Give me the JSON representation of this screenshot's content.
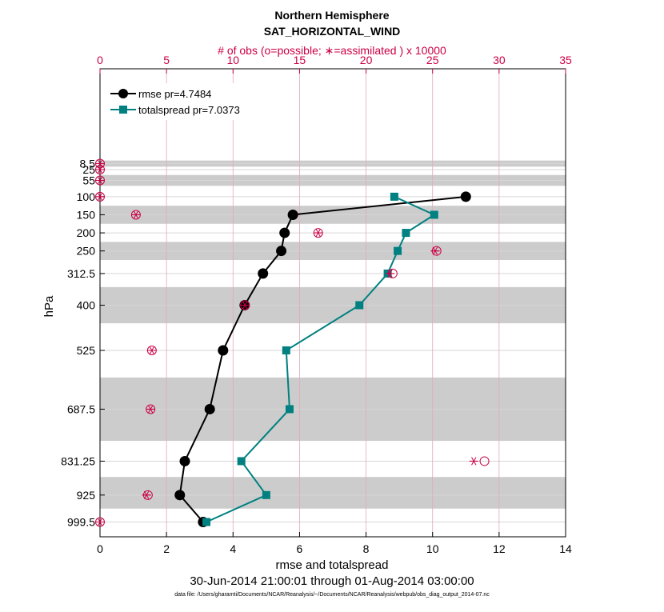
{
  "chart_data": {
    "type": "line",
    "title": "Northern Hemisphere",
    "subtitle": "SAT_HORIZONTAL_WIND",
    "top_axis_label": "# of obs (o=possible; ∗=assimilated ) x 10000",
    "xlabel": "rmse and totalspread",
    "ylabel": "hPa",
    "date_range": "30-Jun-2014 21:00:01 through 01-Aug-2014 03:00:00",
    "data_file": "data file: /Users/gharamti/Documents/NCAR/Reanalysis/~/Documents/NCAR/Reanalysis/webpub/obs_diag_output_2014-07.nc",
    "xlim": [
      0,
      14
    ],
    "xticks": [
      "0",
      "2",
      "4",
      "6",
      "8",
      "10",
      "12",
      "14"
    ],
    "top_xlim": [
      0,
      35
    ],
    "top_xticks": [
      "0",
      "5",
      "10",
      "15",
      "20",
      "25",
      "30",
      "35"
    ],
    "levels": [
      "8.5",
      "25",
      "55",
      "100",
      "150",
      "200",
      "250",
      "312.5",
      "400",
      "525",
      "687.5",
      "831.25",
      "925",
      "999.5"
    ],
    "level_values": [
      8.5,
      25,
      55,
      100,
      150,
      200,
      250,
      312.5,
      400,
      525,
      687.5,
      831.25,
      925,
      999.5
    ],
    "shaded_bands_hPa": [
      [
        0,
        17
      ],
      [
        40,
        70
      ],
      [
        125,
        175
      ],
      [
        225,
        275
      ],
      [
        350,
        450
      ],
      [
        600,
        775
      ],
      [
        875,
        962.5
      ]
    ],
    "series": [
      {
        "name": "rmse",
        "legend": "rmse pr=4.7484",
        "color": "#000000",
        "marker": "circle",
        "levels": [
          100,
          150,
          200,
          250,
          312.5,
          400,
          525,
          687.5,
          831.25,
          925,
          999.5
        ],
        "values": [
          11.0,
          5.8,
          5.55,
          5.45,
          4.9,
          4.35,
          3.7,
          3.3,
          2.55,
          2.4,
          3.1
        ]
      },
      {
        "name": "totalspread",
        "legend": "totalspread pr=7.0373",
        "color": "#008080",
        "marker": "square",
        "levels": [
          100,
          150,
          200,
          250,
          312.5,
          400,
          525,
          687.5,
          831.25,
          925,
          999.5
        ],
        "values": [
          8.85,
          10.05,
          9.2,
          8.95,
          8.65,
          7.8,
          5.6,
          5.7,
          4.25,
          5.0,
          3.2
        ]
      }
    ],
    "obs_color": "#cc0044",
    "obs_possible": [
      {
        "level": 8.5,
        "count": 0.0
      },
      {
        "level": 25,
        "count": 0.0
      },
      {
        "level": 55,
        "count": 0.0
      },
      {
        "level": 100,
        "count": 0.0
      },
      {
        "level": 150,
        "count": 2.7
      },
      {
        "level": 200,
        "count": 16.4
      },
      {
        "level": 250,
        "count": 25.3
      },
      {
        "level": 312.5,
        "count": 22.0
      },
      {
        "level": 400,
        "count": 10.9
      },
      {
        "level": 525,
        "count": 3.9
      },
      {
        "level": 687.5,
        "count": 3.8
      },
      {
        "level": 831.25,
        "count": 28.9
      },
      {
        "level": 925,
        "count": 3.6
      },
      {
        "level": 999.5,
        "count": 0.0
      }
    ],
    "obs_assimilated": [
      {
        "level": 8.5,
        "count": 0.0
      },
      {
        "level": 25,
        "count": 0.0
      },
      {
        "level": 55,
        "count": 0.0
      },
      {
        "level": 100,
        "count": 0.0
      },
      {
        "level": 150,
        "count": 2.7
      },
      {
        "level": 200,
        "count": 16.4
      },
      {
        "level": 250,
        "count": 25.2
      },
      {
        "level": 312.5,
        "count": 21.8
      },
      {
        "level": 400,
        "count": 10.9
      },
      {
        "level": 525,
        "count": 3.9
      },
      {
        "level": 687.5,
        "count": 3.8
      },
      {
        "level": 831.25,
        "count": 28.1
      },
      {
        "level": 925,
        "count": 3.5
      },
      {
        "level": 999.5,
        "count": 0.0
      }
    ]
  }
}
